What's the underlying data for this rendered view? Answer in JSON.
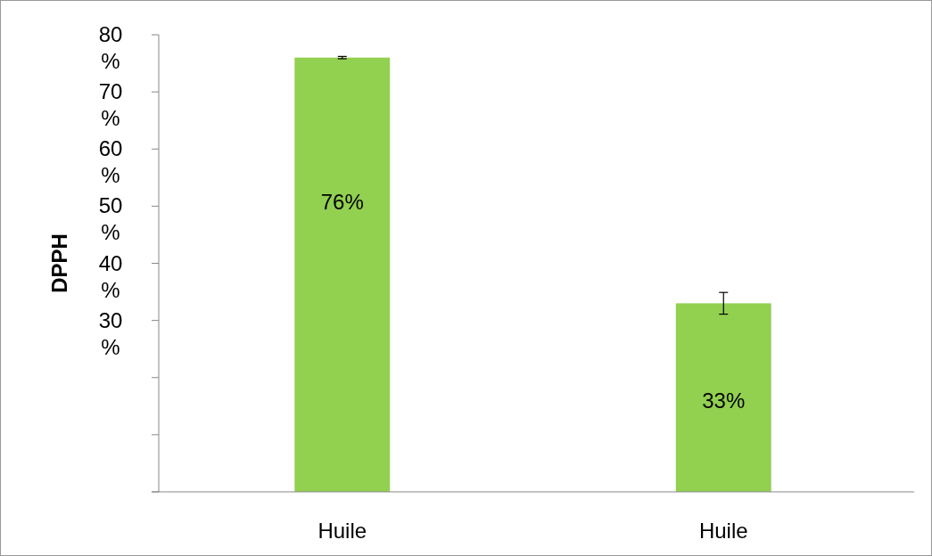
{
  "chart_data": {
    "type": "bar",
    "ylabel": "DPPH",
    "categories": [
      "Huile",
      "Huile"
    ],
    "values": [
      76,
      33
    ],
    "errors": [
      0.2,
      1.9
    ],
    "color": "#92d050",
    "data_labels": true,
    "value_labels": [
      "76%",
      "33%"
    ],
    "ylim": [
      0,
      80
    ],
    "yticks": [
      {
        "value": 0,
        "label": null
      },
      {
        "value": 10,
        "label": null
      },
      {
        "value": 20,
        "label": null
      },
      {
        "value": 30,
        "label": "30%"
      },
      {
        "value": 40,
        "label": "40%"
      },
      {
        "value": 50,
        "label": "50%"
      },
      {
        "value": 60,
        "label": "60%"
      },
      {
        "value": 70,
        "label": "70%"
      },
      {
        "value": 80,
        "label": "80%"
      }
    ],
    "grid": false
  }
}
